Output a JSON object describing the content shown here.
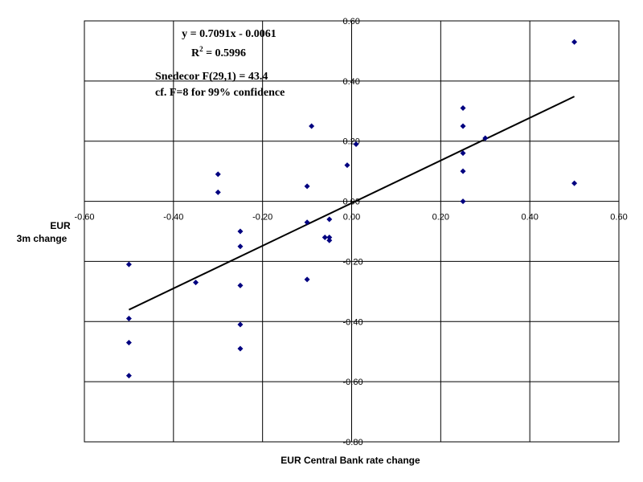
{
  "chart_data": {
    "type": "scatter",
    "title": "",
    "xlabel": "EUR Central Bank rate change",
    "ylabel_lines": [
      "EUR",
      "3m change"
    ],
    "xlim": [
      -0.6,
      0.6
    ],
    "ylim": [
      -0.8,
      0.6
    ],
    "xticks": [
      -0.6,
      -0.4,
      -0.2,
      0.0,
      0.2,
      0.4,
      0.6
    ],
    "yticks": [
      0.6,
      0.4,
      0.2,
      0.0,
      -0.2,
      -0.4,
      -0.6,
      -0.8
    ],
    "xtick_labels": [
      "-0.60",
      "-0.40",
      "-0.20",
      "0.00",
      "0.20",
      "0.40",
      "0.60"
    ],
    "ytick_labels": [
      "0.60",
      "0.40",
      "0.20",
      "0.00",
      "-0.20",
      "-0.40",
      "-0.60",
      "-0.80"
    ],
    "grid": true,
    "marker_color": "#000080",
    "points": [
      {
        "x": -0.5,
        "y": -0.21
      },
      {
        "x": -0.5,
        "y": -0.39
      },
      {
        "x": -0.5,
        "y": -0.47
      },
      {
        "x": -0.5,
        "y": -0.58
      },
      {
        "x": -0.35,
        "y": -0.27
      },
      {
        "x": -0.3,
        "y": 0.09
      },
      {
        "x": -0.3,
        "y": 0.03
      },
      {
        "x": -0.25,
        "y": -0.1
      },
      {
        "x": -0.25,
        "y": -0.15
      },
      {
        "x": -0.25,
        "y": -0.28
      },
      {
        "x": -0.25,
        "y": -0.41
      },
      {
        "x": -0.25,
        "y": -0.49
      },
      {
        "x": -0.1,
        "y": 0.05
      },
      {
        "x": -0.1,
        "y": -0.07
      },
      {
        "x": -0.1,
        "y": -0.26
      },
      {
        "x": -0.09,
        "y": 0.25
      },
      {
        "x": -0.06,
        "y": -0.12
      },
      {
        "x": -0.05,
        "y": -0.06
      },
      {
        "x": -0.05,
        "y": -0.12
      },
      {
        "x": -0.05,
        "y": -0.13
      },
      {
        "x": -0.01,
        "y": 0.12
      },
      {
        "x": 0.01,
        "y": 0.19
      },
      {
        "x": 0.25,
        "y": 0.31
      },
      {
        "x": 0.25,
        "y": 0.25
      },
      {
        "x": 0.25,
        "y": 0.16
      },
      {
        "x": 0.25,
        "y": 0.1
      },
      {
        "x": 0.25,
        "y": 0.0
      },
      {
        "x": 0.3,
        "y": 0.21
      },
      {
        "x": 0.5,
        "y": 0.53
      },
      {
        "x": 0.5,
        "y": 0.06
      }
    ],
    "trendline": {
      "slope": 0.7091,
      "intercept": -0.0061,
      "x_range": [
        -0.5,
        0.5
      ],
      "color": "#000000"
    },
    "annotations": {
      "equation": "y = 0.7091x - 0.0061",
      "r2_base": "R",
      "r2_sup": "2",
      "r2_rest": " = 0.5996",
      "snedecor": "Snedecor F(29,1) = 43.4",
      "confidence": "cf. F=8 for 99% confidence"
    }
  }
}
